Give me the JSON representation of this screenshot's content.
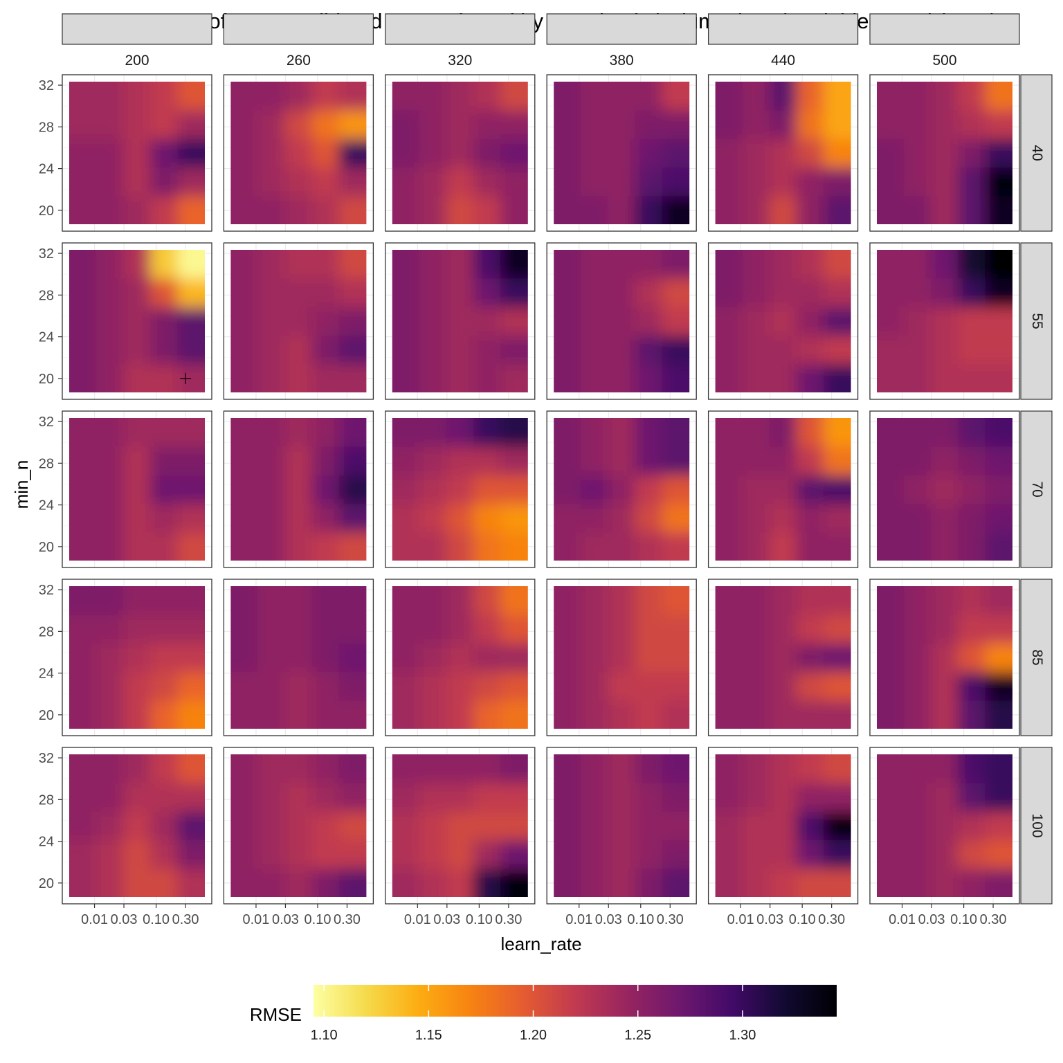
{
  "chart_data": {
    "type": "heatmap",
    "title": "Heat Map of Cross Validated RMSE facted by tree depth (columns) and variables used (rows)",
    "xlabel": "learn_rate",
    "ylabel": "min_n",
    "legend_title": "RMSE",
    "legend_placement": "bottom",
    "grid": true,
    "colormap": "inferno",
    "color_range": [
      1.095,
      1.345
    ],
    "legend_ticks": [
      1.1,
      1.15,
      1.2,
      1.25,
      1.3
    ],
    "legend_tick_labels": [
      "1.10",
      "1.15",
      "1.20",
      "1.25",
      "1.30"
    ],
    "facet_columns": [
      "200",
      "260",
      "320",
      "380",
      "440",
      "500"
    ],
    "facet_rows": [
      "40",
      "55",
      "70",
      "85",
      "100"
    ],
    "x": [
      0.005,
      0.016,
      0.05,
      0.16,
      0.5
    ],
    "x_ticks": [
      0.01,
      0.03,
      0.1,
      0.3
    ],
    "x_tick_labels": [
      "0.01",
      "0.03",
      "0.10",
      "0.30"
    ],
    "xlim": [
      0.003,
      0.8
    ],
    "y": [
      19,
      22,
      25,
      28,
      31
    ],
    "y_ticks": [
      20,
      24,
      28,
      32
    ],
    "y_tick_labels": [
      "20",
      "24",
      "28",
      "32"
    ],
    "ylim": [
      18,
      33
    ],
    "best_point": {
      "facet_row": "55",
      "facet_column": "200",
      "learn_rate": 0.3,
      "min_n": 20,
      "marker": "+"
    },
    "values": {
      "40": {
        "200": [
          [
            1.25,
            1.25,
            1.24,
            1.22,
            1.19
          ],
          [
            1.25,
            1.25,
            1.23,
            1.26,
            1.24
          ],
          [
            1.25,
            1.25,
            1.23,
            1.27,
            1.3
          ],
          [
            1.24,
            1.24,
            1.23,
            1.22,
            1.24
          ],
          [
            1.24,
            1.24,
            1.23,
            1.22,
            1.2
          ]
        ],
        "260": [
          [
            1.25,
            1.25,
            1.24,
            1.23,
            1.21
          ],
          [
            1.25,
            1.24,
            1.23,
            1.22,
            1.24
          ],
          [
            1.25,
            1.24,
            1.22,
            1.2,
            1.3
          ],
          [
            1.25,
            1.24,
            1.21,
            1.18,
            1.16
          ],
          [
            1.25,
            1.25,
            1.24,
            1.22,
            1.23
          ]
        ],
        "320": [
          [
            1.25,
            1.24,
            1.21,
            1.22,
            1.25
          ],
          [
            1.25,
            1.24,
            1.22,
            1.24,
            1.25
          ],
          [
            1.26,
            1.25,
            1.24,
            1.26,
            1.27
          ],
          [
            1.26,
            1.25,
            1.24,
            1.25,
            1.25
          ],
          [
            1.25,
            1.25,
            1.24,
            1.23,
            1.21
          ]
        ],
        "380": [
          [
            1.26,
            1.26,
            1.25,
            1.3,
            1.33
          ],
          [
            1.26,
            1.25,
            1.25,
            1.28,
            1.29
          ],
          [
            1.26,
            1.25,
            1.25,
            1.27,
            1.28
          ],
          [
            1.26,
            1.25,
            1.25,
            1.26,
            1.26
          ],
          [
            1.26,
            1.25,
            1.25,
            1.25,
            1.22
          ]
        ],
        "440": [
          [
            1.25,
            1.24,
            1.21,
            1.25,
            1.28
          ],
          [
            1.25,
            1.24,
            1.23,
            1.25,
            1.26
          ],
          [
            1.25,
            1.24,
            1.23,
            1.21,
            1.17
          ],
          [
            1.26,
            1.25,
            1.26,
            1.18,
            1.15
          ],
          [
            1.26,
            1.25,
            1.28,
            1.19,
            1.15
          ]
        ],
        "500": [
          [
            1.26,
            1.26,
            1.24,
            1.28,
            1.33
          ],
          [
            1.26,
            1.25,
            1.24,
            1.28,
            1.34
          ],
          [
            1.26,
            1.25,
            1.24,
            1.26,
            1.3
          ],
          [
            1.25,
            1.25,
            1.24,
            1.23,
            1.22
          ],
          [
            1.25,
            1.25,
            1.24,
            1.22,
            1.18
          ]
        ]
      },
      "55": {
        "200": [
          [
            1.26,
            1.25,
            1.23,
            1.23,
            1.24
          ],
          [
            1.26,
            1.25,
            1.24,
            1.26,
            1.28
          ],
          [
            1.26,
            1.25,
            1.24,
            1.26,
            1.28
          ],
          [
            1.26,
            1.25,
            1.24,
            1.2,
            1.14
          ],
          [
            1.26,
            1.25,
            1.23,
            1.13,
            1.1
          ]
        ],
        "260": [
          [
            1.25,
            1.24,
            1.23,
            1.24,
            1.24
          ],
          [
            1.25,
            1.24,
            1.23,
            1.26,
            1.28
          ],
          [
            1.25,
            1.24,
            1.24,
            1.25,
            1.26
          ],
          [
            1.25,
            1.24,
            1.24,
            1.24,
            1.23
          ],
          [
            1.25,
            1.24,
            1.23,
            1.23,
            1.21
          ]
        ],
        "320": [
          [
            1.26,
            1.25,
            1.24,
            1.25,
            1.24
          ],
          [
            1.26,
            1.25,
            1.24,
            1.25,
            1.26
          ],
          [
            1.26,
            1.25,
            1.24,
            1.24,
            1.23
          ],
          [
            1.26,
            1.25,
            1.24,
            1.27,
            1.3
          ],
          [
            1.26,
            1.25,
            1.24,
            1.29,
            1.33
          ]
        ],
        "380": [
          [
            1.26,
            1.25,
            1.25,
            1.27,
            1.29
          ],
          [
            1.26,
            1.25,
            1.25,
            1.28,
            1.3
          ],
          [
            1.26,
            1.25,
            1.25,
            1.24,
            1.22
          ],
          [
            1.26,
            1.25,
            1.25,
            1.23,
            1.21
          ],
          [
            1.26,
            1.25,
            1.25,
            1.25,
            1.26
          ]
        ],
        "440": [
          [
            1.25,
            1.24,
            1.24,
            1.27,
            1.3
          ],
          [
            1.25,
            1.24,
            1.24,
            1.23,
            1.22
          ],
          [
            1.25,
            1.24,
            1.23,
            1.25,
            1.28
          ],
          [
            1.26,
            1.25,
            1.24,
            1.24,
            1.23
          ],
          [
            1.26,
            1.25,
            1.24,
            1.23,
            1.21
          ]
        ],
        "500": [
          [
            1.24,
            1.24,
            1.23,
            1.23,
            1.23
          ],
          [
            1.24,
            1.24,
            1.23,
            1.22,
            1.22
          ],
          [
            1.25,
            1.24,
            1.23,
            1.22,
            1.22
          ],
          [
            1.25,
            1.25,
            1.26,
            1.3,
            1.33
          ],
          [
            1.25,
            1.25,
            1.27,
            1.32,
            1.35
          ]
        ]
      },
      "70": {
        "200": [
          [
            1.25,
            1.25,
            1.23,
            1.23,
            1.21
          ],
          [
            1.25,
            1.25,
            1.23,
            1.24,
            1.23
          ],
          [
            1.25,
            1.25,
            1.23,
            1.27,
            1.27
          ],
          [
            1.25,
            1.25,
            1.23,
            1.26,
            1.26
          ],
          [
            1.25,
            1.25,
            1.24,
            1.24,
            1.24
          ]
        ],
        "260": [
          [
            1.25,
            1.25,
            1.23,
            1.22,
            1.21
          ],
          [
            1.25,
            1.25,
            1.23,
            1.25,
            1.28
          ],
          [
            1.25,
            1.25,
            1.23,
            1.27,
            1.31
          ],
          [
            1.25,
            1.25,
            1.23,
            1.26,
            1.29
          ],
          [
            1.25,
            1.25,
            1.24,
            1.25,
            1.27
          ]
        ],
        "320": [
          [
            1.23,
            1.23,
            1.21,
            1.18,
            1.17
          ],
          [
            1.23,
            1.22,
            1.2,
            1.17,
            1.16
          ],
          [
            1.24,
            1.23,
            1.22,
            1.2,
            1.2
          ],
          [
            1.25,
            1.24,
            1.23,
            1.23,
            1.24
          ],
          [
            1.26,
            1.26,
            1.27,
            1.3,
            1.31
          ]
        ],
        "380": [
          [
            1.25,
            1.24,
            1.24,
            1.23,
            1.22
          ],
          [
            1.25,
            1.25,
            1.24,
            1.21,
            1.18
          ],
          [
            1.26,
            1.27,
            1.25,
            1.22,
            1.2
          ],
          [
            1.26,
            1.25,
            1.24,
            1.27,
            1.28
          ],
          [
            1.26,
            1.25,
            1.24,
            1.27,
            1.28
          ]
        ],
        "440": [
          [
            1.25,
            1.24,
            1.22,
            1.25,
            1.25
          ],
          [
            1.25,
            1.24,
            1.23,
            1.25,
            1.24
          ],
          [
            1.25,
            1.24,
            1.24,
            1.28,
            1.29
          ],
          [
            1.25,
            1.25,
            1.25,
            1.22,
            1.18
          ],
          [
            1.25,
            1.25,
            1.26,
            1.2,
            1.16
          ]
        ],
        "500": [
          [
            1.26,
            1.26,
            1.25,
            1.26,
            1.28
          ],
          [
            1.26,
            1.26,
            1.25,
            1.26,
            1.27
          ],
          [
            1.26,
            1.25,
            1.24,
            1.25,
            1.26
          ],
          [
            1.26,
            1.26,
            1.25,
            1.26,
            1.27
          ],
          [
            1.26,
            1.26,
            1.26,
            1.28,
            1.29
          ]
        ]
      },
      "85": {
        "200": [
          [
            1.25,
            1.24,
            1.22,
            1.19,
            1.17
          ],
          [
            1.25,
            1.24,
            1.22,
            1.21,
            1.19
          ],
          [
            1.25,
            1.24,
            1.23,
            1.22,
            1.22
          ],
          [
            1.25,
            1.25,
            1.24,
            1.24,
            1.24
          ],
          [
            1.26,
            1.26,
            1.25,
            1.25,
            1.25
          ]
        ],
        "260": [
          [
            1.25,
            1.25,
            1.24,
            1.25,
            1.25
          ],
          [
            1.25,
            1.25,
            1.24,
            1.25,
            1.26
          ],
          [
            1.26,
            1.25,
            1.25,
            1.26,
            1.27
          ],
          [
            1.26,
            1.25,
            1.25,
            1.26,
            1.26
          ],
          [
            1.26,
            1.25,
            1.25,
            1.26,
            1.26
          ]
        ],
        "320": [
          [
            1.24,
            1.23,
            1.22,
            1.19,
            1.18
          ],
          [
            1.24,
            1.23,
            1.22,
            1.21,
            1.2
          ],
          [
            1.25,
            1.24,
            1.23,
            1.24,
            1.24
          ],
          [
            1.25,
            1.25,
            1.24,
            1.22,
            1.2
          ],
          [
            1.25,
            1.25,
            1.24,
            1.21,
            1.18
          ]
        ],
        "380": [
          [
            1.25,
            1.24,
            1.23,
            1.22,
            1.23
          ],
          [
            1.25,
            1.24,
            1.22,
            1.22,
            1.22
          ],
          [
            1.25,
            1.24,
            1.23,
            1.21,
            1.21
          ],
          [
            1.25,
            1.24,
            1.23,
            1.21,
            1.21
          ],
          [
            1.25,
            1.24,
            1.23,
            1.21,
            1.2
          ]
        ],
        "440": [
          [
            1.25,
            1.25,
            1.24,
            1.24,
            1.24
          ],
          [
            1.25,
            1.25,
            1.24,
            1.21,
            1.2
          ],
          [
            1.25,
            1.25,
            1.24,
            1.26,
            1.27
          ],
          [
            1.25,
            1.25,
            1.24,
            1.22,
            1.21
          ],
          [
            1.25,
            1.25,
            1.24,
            1.23,
            1.23
          ]
        ],
        "500": [
          [
            1.26,
            1.25,
            1.23,
            1.28,
            1.31
          ],
          [
            1.26,
            1.25,
            1.23,
            1.29,
            1.33
          ],
          [
            1.26,
            1.25,
            1.23,
            1.2,
            1.17
          ],
          [
            1.26,
            1.25,
            1.24,
            1.22,
            1.22
          ],
          [
            1.26,
            1.25,
            1.24,
            1.23,
            1.24
          ]
        ]
      },
      "100": {
        "200": [
          [
            1.24,
            1.23,
            1.21,
            1.21,
            1.23
          ],
          [
            1.24,
            1.23,
            1.21,
            1.23,
            1.26
          ],
          [
            1.25,
            1.24,
            1.22,
            1.24,
            1.28
          ],
          [
            1.25,
            1.25,
            1.23,
            1.23,
            1.23
          ],
          [
            1.25,
            1.25,
            1.24,
            1.22,
            1.2
          ]
        ],
        "260": [
          [
            1.25,
            1.25,
            1.24,
            1.26,
            1.28
          ],
          [
            1.25,
            1.24,
            1.23,
            1.22,
            1.22
          ],
          [
            1.25,
            1.24,
            1.23,
            1.22,
            1.21
          ],
          [
            1.25,
            1.24,
            1.23,
            1.24,
            1.25
          ],
          [
            1.25,
            1.24,
            1.24,
            1.25,
            1.26
          ]
        ],
        "320": [
          [
            1.24,
            1.23,
            1.22,
            1.31,
            1.34
          ],
          [
            1.23,
            1.22,
            1.21,
            1.24,
            1.27
          ],
          [
            1.23,
            1.22,
            1.21,
            1.21,
            1.21
          ],
          [
            1.24,
            1.23,
            1.23,
            1.22,
            1.22
          ],
          [
            1.25,
            1.25,
            1.25,
            1.25,
            1.26
          ]
        ],
        "380": [
          [
            1.26,
            1.25,
            1.24,
            1.26,
            1.28
          ],
          [
            1.26,
            1.25,
            1.24,
            1.25,
            1.26
          ],
          [
            1.26,
            1.25,
            1.24,
            1.25,
            1.25
          ],
          [
            1.26,
            1.25,
            1.24,
            1.25,
            1.26
          ],
          [
            1.26,
            1.25,
            1.24,
            1.26,
            1.27
          ]
        ],
        "440": [
          [
            1.24,
            1.23,
            1.22,
            1.21,
            1.21
          ],
          [
            1.24,
            1.23,
            1.23,
            1.27,
            1.3
          ],
          [
            1.24,
            1.23,
            1.23,
            1.29,
            1.34
          ],
          [
            1.25,
            1.24,
            1.23,
            1.25,
            1.25
          ],
          [
            1.25,
            1.24,
            1.23,
            1.22,
            1.21
          ]
        ],
        "500": [
          [
            1.25,
            1.25,
            1.24,
            1.25,
            1.26
          ],
          [
            1.25,
            1.25,
            1.24,
            1.21,
            1.2
          ],
          [
            1.25,
            1.25,
            1.24,
            1.23,
            1.22
          ],
          [
            1.25,
            1.25,
            1.24,
            1.28,
            1.3
          ],
          [
            1.25,
            1.25,
            1.25,
            1.29,
            1.3
          ]
        ]
      }
    }
  }
}
